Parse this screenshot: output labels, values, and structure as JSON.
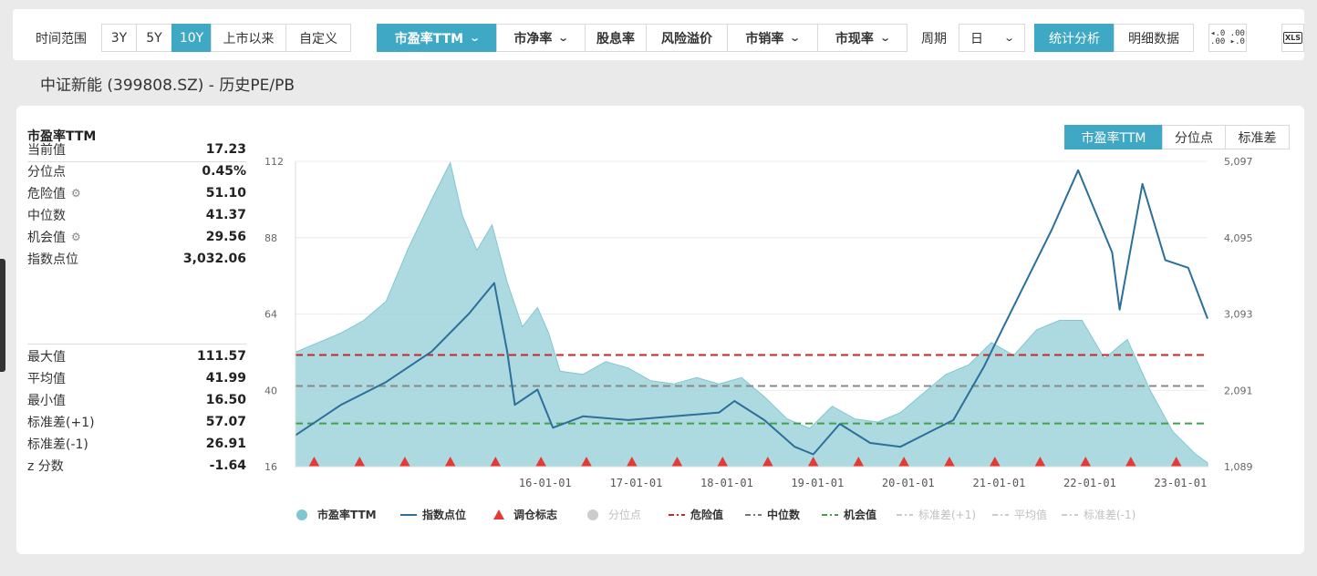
{
  "toolbar": {
    "time_range_label": "时间范围",
    "ranges": [
      "3Y",
      "5Y",
      "10Y",
      "上市以来",
      "自定义"
    ],
    "active_range": "10Y",
    "metrics": [
      {
        "label": "市盈率TTM",
        "dropdown": true,
        "active": true
      },
      {
        "label": "市净率",
        "dropdown": true,
        "active": false
      },
      {
        "label": "股息率",
        "dropdown": false,
        "active": false
      },
      {
        "label": "风险溢价",
        "dropdown": false,
        "active": false
      },
      {
        "label": "市销率",
        "dropdown": true,
        "active": false
      },
      {
        "label": "市现率",
        "dropdown": true,
        "active": false
      }
    ],
    "period_label": "周期",
    "period_value": "日",
    "analysis_tabs": [
      "统计分析",
      "明细数据"
    ],
    "active_analysis": "统计分析",
    "decimal_icon": "decimal-precision-icon",
    "xls_icon": "xls-export-icon"
  },
  "page_title": "中证新能 (399808.SZ) - 历史PE/PB",
  "panel": {
    "title": "市盈率TTM",
    "stats_top": [
      {
        "label": "当前值",
        "value": "17.23",
        "gear": false
      },
      {
        "label": "分位点",
        "value": "0.45%",
        "gear": false
      },
      {
        "label": "危险值",
        "value": "51.10",
        "gear": true
      },
      {
        "label": "中位数",
        "value": "41.37",
        "gear": false
      },
      {
        "label": "机会值",
        "value": "29.56",
        "gear": true
      },
      {
        "label": "指数点位",
        "value": "3,032.06",
        "gear": false
      }
    ],
    "stats_bottom": [
      {
        "label": "最大值",
        "value": "111.57"
      },
      {
        "label": "平均值",
        "value": "41.99"
      },
      {
        "label": "最小值",
        "value": "16.50"
      },
      {
        "label": "标准差(+1)",
        "value": "57.07"
      },
      {
        "label": "标准差(-1)",
        "value": "26.91"
      },
      {
        "label": "z 分数",
        "value": "-1.64"
      }
    ]
  },
  "view_tabs": [
    "市盈率TTM",
    "分位点",
    "标准差"
  ],
  "active_view": "市盈率TTM",
  "colors": {
    "accent": "#3fa9c5",
    "pe_area": "#9fd3dc",
    "index_line": "#2b6f9a",
    "marker": "#e53935",
    "danger": "#c62828",
    "median": "#888888",
    "opportunity": "#43a047"
  },
  "chart_data": {
    "type": "area",
    "x_range": [
      "2013-04-01",
      "2023-04-20"
    ],
    "x_ticks": [
      "16-01-01",
      "17-01-01",
      "18-01-01",
      "19-01-01",
      "20-01-01",
      "21-01-01",
      "22-01-01",
      "23-01-01"
    ],
    "y_left_ticks": [
      "112",
      "88",
      "64",
      "40",
      "16"
    ],
    "y_left_range": [
      16,
      112
    ],
    "y_right_ticks": [
      "5,097",
      "4,095",
      "3,093",
      "2,091",
      "1,089"
    ],
    "y_right_range": [
      1089,
      5097
    ],
    "series": [
      {
        "name": "市盈率TTM",
        "axis": "left",
        "style": "area",
        "points": [
          [
            "2013-04-01",
            52
          ],
          [
            "2013-07-01",
            55
          ],
          [
            "2013-10-01",
            58
          ],
          [
            "2014-01-01",
            62
          ],
          [
            "2014-04-01",
            68
          ],
          [
            "2014-07-01",
            85
          ],
          [
            "2014-10-01",
            100
          ],
          [
            "2014-12-15",
            111.57
          ],
          [
            "2015-02-01",
            95
          ],
          [
            "2015-04-01",
            84
          ],
          [
            "2015-06-01",
            92
          ],
          [
            "2015-08-01",
            74
          ],
          [
            "2015-10-01",
            60
          ],
          [
            "2015-12-01",
            66
          ],
          [
            "2016-01-15",
            58
          ],
          [
            "2016-03-01",
            46
          ],
          [
            "2016-06-01",
            45
          ],
          [
            "2016-09-01",
            49
          ],
          [
            "2016-12-01",
            47
          ],
          [
            "2017-03-01",
            43
          ],
          [
            "2017-06-01",
            42
          ],
          [
            "2017-09-01",
            44
          ],
          [
            "2017-12-01",
            42
          ],
          [
            "2018-03-01",
            44
          ],
          [
            "2018-06-01",
            38
          ],
          [
            "2018-09-01",
            31
          ],
          [
            "2018-12-01",
            28
          ],
          [
            "2019-03-01",
            35
          ],
          [
            "2019-06-01",
            31
          ],
          [
            "2019-09-01",
            30
          ],
          [
            "2019-12-01",
            33
          ],
          [
            "2020-03-01",
            39
          ],
          [
            "2020-06-01",
            45
          ],
          [
            "2020-09-01",
            48
          ],
          [
            "2020-12-01",
            55
          ],
          [
            "2021-03-01",
            51
          ],
          [
            "2021-06-01",
            59
          ],
          [
            "2021-09-01",
            62
          ],
          [
            "2021-12-01",
            62
          ],
          [
            "2022-03-01",
            50
          ],
          [
            "2022-06-01",
            56
          ],
          [
            "2022-09-01",
            40
          ],
          [
            "2022-12-01",
            27
          ],
          [
            "2023-03-01",
            20
          ],
          [
            "2023-04-20",
            17.23
          ]
        ]
      },
      {
        "name": "指数点位",
        "axis": "right",
        "style": "line",
        "points": [
          [
            "2013-04-01",
            1500
          ],
          [
            "2013-10-01",
            1900
          ],
          [
            "2014-04-01",
            2200
          ],
          [
            "2014-10-01",
            2600
          ],
          [
            "2015-03-01",
            3100
          ],
          [
            "2015-06-10",
            3500
          ],
          [
            "2015-08-01",
            2600
          ],
          [
            "2015-09-01",
            1900
          ],
          [
            "2015-12-01",
            2100
          ],
          [
            "2016-02-01",
            1600
          ],
          [
            "2016-06-01",
            1750
          ],
          [
            "2016-12-01",
            1700
          ],
          [
            "2017-06-01",
            1750
          ],
          [
            "2017-12-01",
            1800
          ],
          [
            "2018-02-01",
            1950
          ],
          [
            "2018-06-01",
            1700
          ],
          [
            "2018-10-01",
            1350
          ],
          [
            "2018-12-15",
            1250
          ],
          [
            "2019-04-01",
            1650
          ],
          [
            "2019-08-01",
            1400
          ],
          [
            "2019-12-01",
            1350
          ],
          [
            "2020-03-01",
            1500
          ],
          [
            "2020-07-01",
            1700
          ],
          [
            "2020-11-01",
            2400
          ],
          [
            "2021-01-15",
            2900
          ],
          [
            "2021-04-01",
            3400
          ],
          [
            "2021-08-01",
            4200
          ],
          [
            "2021-11-15",
            4980
          ],
          [
            "2022-04-01",
            3900
          ],
          [
            "2022-05-01",
            3150
          ],
          [
            "2022-08-01",
            4800
          ],
          [
            "2022-11-01",
            3800
          ],
          [
            "2023-02-01",
            3700
          ],
          [
            "2023-04-20",
            3032
          ]
        ]
      }
    ],
    "horizontal_lines": [
      {
        "name": "危险值",
        "value": 51.1
      },
      {
        "name": "中位数",
        "value": 41.37
      },
      {
        "name": "机会值",
        "value": 29.56
      }
    ],
    "rebalance_markers": [
      "2013-06-15",
      "2013-12-15",
      "2014-06-15",
      "2014-12-15",
      "2015-06-15",
      "2015-12-15",
      "2016-06-15",
      "2016-12-15",
      "2017-06-15",
      "2017-12-15",
      "2018-06-15",
      "2018-12-15",
      "2019-06-15",
      "2019-12-15",
      "2020-06-15",
      "2020-12-15",
      "2021-06-15",
      "2021-12-15",
      "2022-06-15",
      "2022-12-15"
    ],
    "legend": [
      {
        "label": "市盈率TTM",
        "symbol": "circle",
        "color": "#7fc6d2",
        "muted": false
      },
      {
        "label": "指数点位",
        "symbol": "line",
        "color": "#2b6f9a",
        "muted": false
      },
      {
        "label": "调仓标志",
        "symbol": "triangle",
        "color": "#e53935",
        "muted": false
      },
      {
        "label": "分位点",
        "symbol": "circle",
        "color": "#cccccc",
        "muted": true
      },
      {
        "label": "危险值",
        "symbol": "dash",
        "color": "#c62828",
        "muted": false
      },
      {
        "label": "中位数",
        "symbol": "dash",
        "color": "#777777",
        "muted": false
      },
      {
        "label": "机会值",
        "symbol": "dash",
        "color": "#43a047",
        "muted": false
      },
      {
        "label": "标准差(+1)",
        "symbol": "dash",
        "color": "#cccccc",
        "muted": true
      },
      {
        "label": "平均值",
        "symbol": "dash",
        "color": "#cccccc",
        "muted": true
      },
      {
        "label": "标准差(-1)",
        "symbol": "dash",
        "color": "#cccccc",
        "muted": true
      }
    ],
    "legend_position": "bottom",
    "grid": true
  }
}
